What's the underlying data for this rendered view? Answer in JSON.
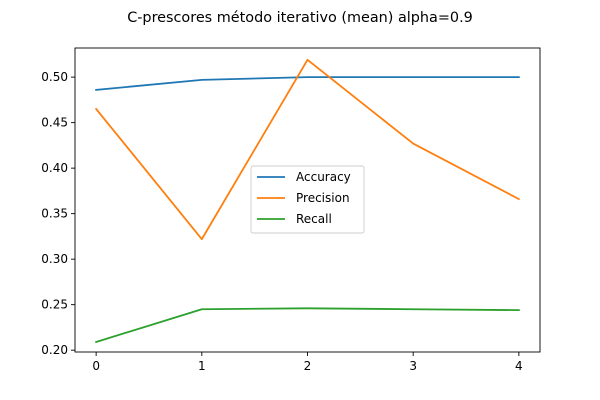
{
  "chart_data": {
    "type": "line",
    "title": "C-prescores método iterativo (mean) alpha=0.9",
    "xlabel": "",
    "ylabel": "",
    "x": [
      0,
      1,
      2,
      3,
      4
    ],
    "xticks": [
      "0",
      "1",
      "2",
      "3",
      "4"
    ],
    "yticks": [
      "0.20",
      "0.25",
      "0.30",
      "0.35",
      "0.40",
      "0.45",
      "0.50"
    ],
    "xlim": [
      -0.2,
      4.2
    ],
    "ylim": [
      0.198,
      0.532
    ],
    "grid": false,
    "legend_position": "center",
    "series": [
      {
        "name": "Accuracy",
        "color": "#1f77b4",
        "values": [
          0.486,
          0.497,
          0.5,
          0.5,
          0.5
        ]
      },
      {
        "name": "Precision",
        "color": "#ff7f0e",
        "values": [
          0.465,
          0.322,
          0.519,
          0.427,
          0.366
        ]
      },
      {
        "name": "Recall",
        "color": "#2ca02c",
        "values": [
          0.209,
          0.245,
          0.246,
          0.245,
          0.244
        ]
      }
    ]
  }
}
